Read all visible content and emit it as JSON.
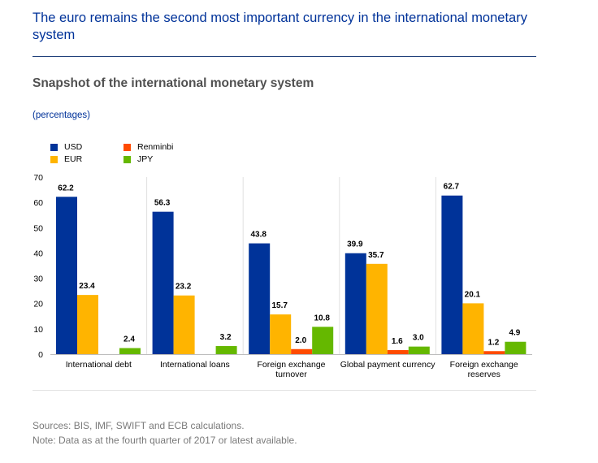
{
  "page": {
    "headline": "The euro remains the second most important currency in the international monetary system",
    "source_note": "Sources: BIS, IMF, SWIFT and ECB calculations.",
    "data_note": "Note: Data as at the fourth quarter of 2017 or latest available."
  },
  "chart_data": {
    "type": "bar",
    "title": "Snapshot of the international monetary system",
    "unit_label": "(percentages)",
    "ylim": [
      0,
      70
    ],
    "yticks": [
      0,
      10,
      20,
      30,
      40,
      50,
      60,
      70
    ],
    "grid": false,
    "legend_position": "top-left",
    "categories": [
      [
        "International debt"
      ],
      [
        "International loans"
      ],
      [
        "Foreign exchange",
        "turnover"
      ],
      [
        "Global payment currency"
      ],
      [
        "Foreign exchange",
        "reserves"
      ]
    ],
    "series": [
      {
        "name": "USD",
        "color": "#003399",
        "values": [
          62.2,
          56.3,
          43.8,
          39.9,
          62.7
        ],
        "labels": [
          "62.2",
          "56.3",
          "43.8",
          "39.9",
          "62.7"
        ]
      },
      {
        "name": "EUR",
        "color": "#FFB400",
        "values": [
          23.4,
          23.2,
          15.7,
          35.7,
          20.1
        ],
        "labels": [
          "23.4",
          "23.2",
          "15.7",
          "35.7",
          "20.1"
        ]
      },
      {
        "name": "Renminbi",
        "color": "#FF4B00",
        "values": [
          0,
          0,
          2.0,
          1.6,
          1.2
        ],
        "labels": [
          "",
          "",
          "2.0",
          "1.6",
          "1.2"
        ]
      },
      {
        "name": "JPY",
        "color": "#65B800",
        "values": [
          2.4,
          3.2,
          10.8,
          3.0,
          4.9
        ],
        "labels": [
          "2.4",
          "3.2",
          "10.8",
          "3.0",
          "4.9"
        ]
      }
    ]
  }
}
